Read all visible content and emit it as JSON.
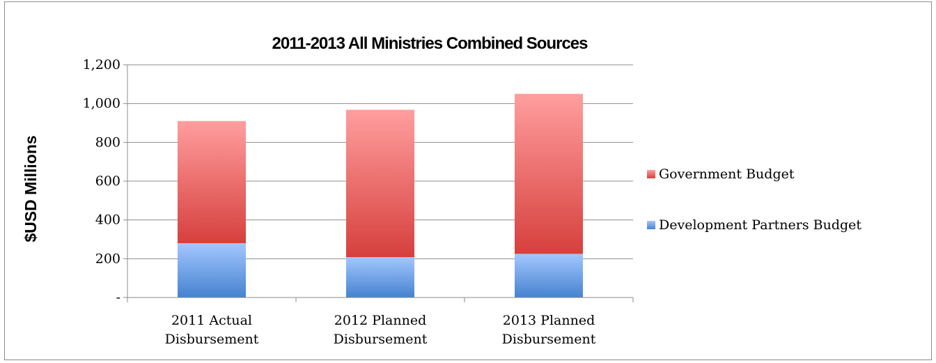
{
  "chart_data": {
    "type": "bar",
    "stacked": true,
    "title": "2011-2013 All Ministries Combined Sources",
    "xlabel": "",
    "ylabel": "$USD Millions",
    "categories": [
      [
        "2011 Actual",
        "Disbursement"
      ],
      [
        "2012 Planned",
        "Disbursement"
      ],
      [
        "2013 Planned",
        "Disbursement"
      ]
    ],
    "series": [
      {
        "name": "Development Partners Budget",
        "values": [
          280,
          208,
          225
        ],
        "color": "#5b9bd5"
      },
      {
        "name": "Government Budget",
        "values": [
          630,
          760,
          825
        ],
        "color": "#e05050"
      }
    ],
    "ylim": [
      0,
      1200
    ],
    "yticks": [
      0,
      200,
      400,
      600,
      800,
      1000,
      1200
    ],
    "ytick_labels": [
      "-",
      "200",
      "400",
      "600",
      "800",
      "1,000",
      "1,200"
    ],
    "grid": true,
    "legend_position": "right"
  }
}
